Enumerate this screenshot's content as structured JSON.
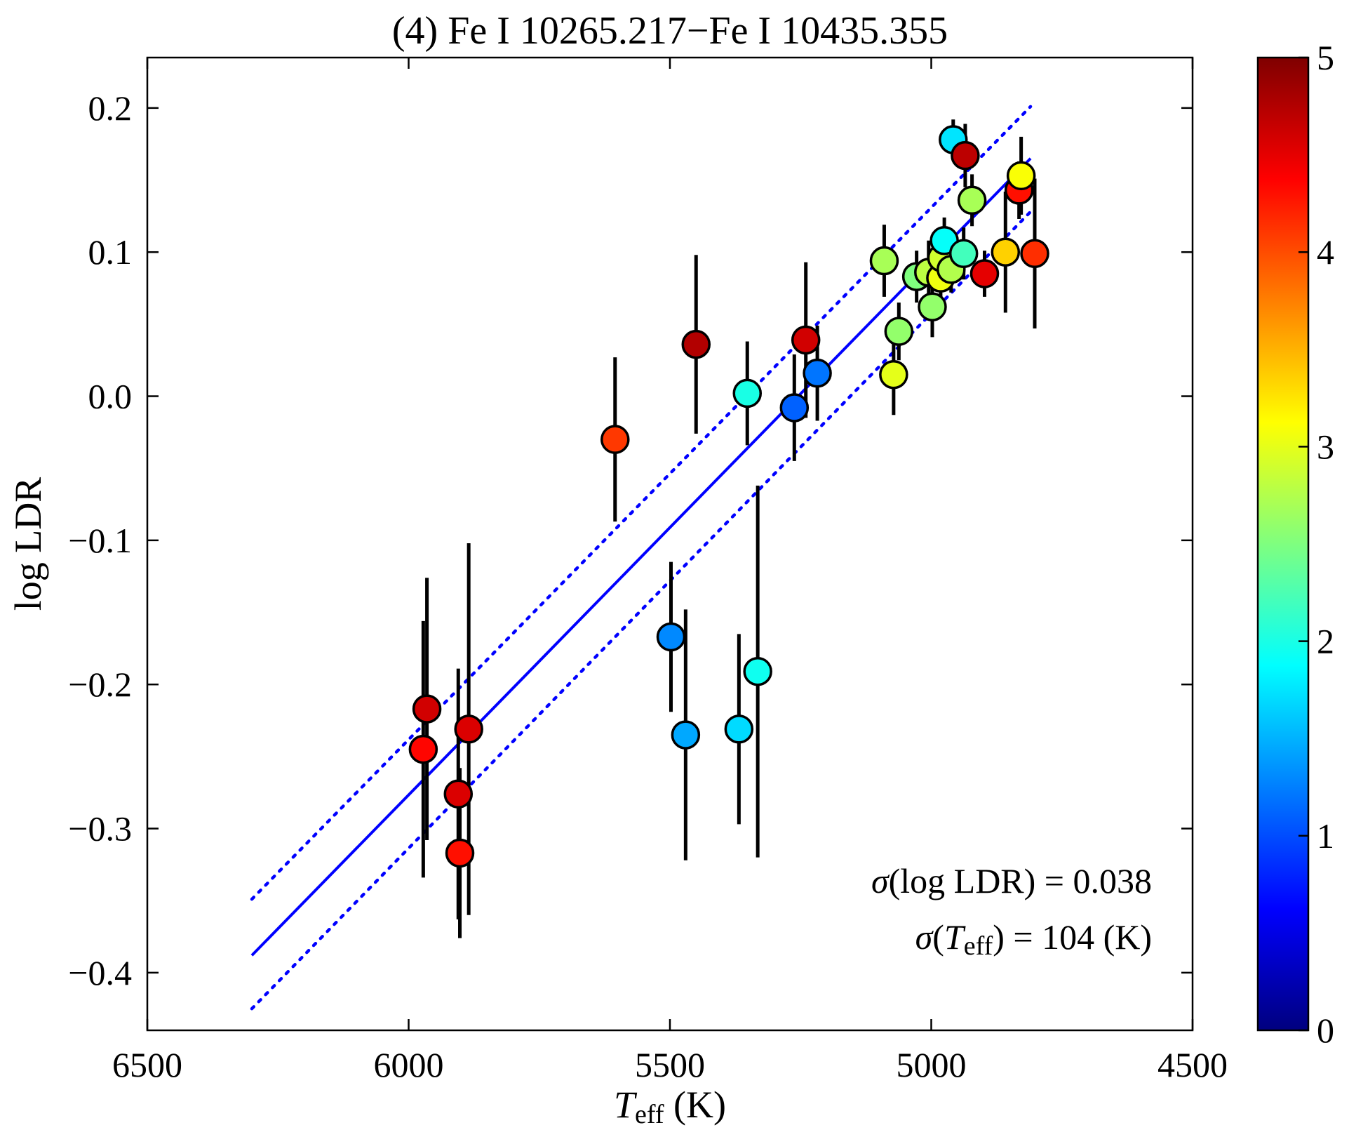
{
  "chart_data": {
    "type": "scatter",
    "title": "(4) Fe I 10265.217−Fe I 10435.355",
    "xlabel": {
      "symbol": "T",
      "sub": "eff",
      "unit": " (K)"
    },
    "ylabel": "log LDR",
    "xlim": [
      6500,
      4500
    ],
    "ylim": [
      -0.44,
      0.235
    ],
    "x_ticks": [
      6500,
      6000,
      5500,
      5000,
      4500
    ],
    "x_tick_labels": [
      "6500",
      "6000",
      "5500",
      "5000",
      "4500"
    ],
    "y_ticks": [
      0.2,
      0.1,
      0.0,
      -0.1,
      -0.2,
      -0.3,
      -0.4
    ],
    "y_tick_labels": [
      "0.2",
      "0.1",
      "0.0",
      "−0.1",
      "−0.2",
      "−0.3",
      "−0.4"
    ],
    "colorbar": {
      "range": [
        0,
        5
      ],
      "ticks": [
        0,
        1,
        2,
        3,
        4,
        5
      ],
      "tick_labels": [
        "0",
        "1",
        "2",
        "3",
        "4",
        "5"
      ],
      "colormap": "jet",
      "stops": [
        "#00007f",
        "#0000ff",
        "#007fff",
        "#00ffff",
        "#7fff7f",
        "#ffff00",
        "#ff7f00",
        "#ff0000",
        "#7f0000"
      ]
    },
    "fit_line": {
      "x": [
        6300,
        4810
      ],
      "y": [
        -0.388,
        0.165
      ],
      "style": "solid",
      "color": "#0000ff"
    },
    "fit_upper": {
      "x": [
        6300,
        4810
      ],
      "y": [
        -0.349,
        0.201
      ],
      "style": "dotted",
      "color": "#0000ff"
    },
    "fit_lower": {
      "x": [
        6300,
        4810
      ],
      "y": [
        -0.425,
        0.128
      ],
      "style": "dotted",
      "color": "#0000ff"
    },
    "points": [
      {
        "x": 5450,
        "y": 0.036,
        "err": 0.062,
        "c": 4.75
      },
      {
        "x": 5605,
        "y": -0.03,
        "err": 0.057,
        "c": 4.1
      },
      {
        "x": 5352,
        "y": 0.002,
        "err": 0.036,
        "c": 2.0
      },
      {
        "x": 5262,
        "y": -0.008,
        "err": 0.037,
        "c": 1.1
      },
      {
        "x": 5240,
        "y": 0.039,
        "err": 0.054,
        "c": 4.6
      },
      {
        "x": 5218,
        "y": 0.016,
        "err": 0.033,
        "c": 1.2
      },
      {
        "x": 5090,
        "y": 0.094,
        "err": 0.025,
        "c": 2.7
      },
      {
        "x": 5072,
        "y": 0.015,
        "err": 0.028,
        "c": 3.0
      },
      {
        "x": 5062,
        "y": 0.045,
        "err": 0.02,
        "c": 2.6
      },
      {
        "x": 5028,
        "y": 0.083,
        "err": 0.018,
        "c": 2.5
      },
      {
        "x": 5005,
        "y": 0.086,
        "err": 0.022,
        "c": 2.8
      },
      {
        "x": 4998,
        "y": 0.062,
        "err": 0.021,
        "c": 2.6
      },
      {
        "x": 4982,
        "y": 0.082,
        "err": 0.02,
        "c": 3.05
      },
      {
        "x": 4980,
        "y": 0.096,
        "err": 0.02,
        "c": 2.9
      },
      {
        "x": 4975,
        "y": 0.108,
        "err": 0.016,
        "c": 1.9
      },
      {
        "x": 4962,
        "y": 0.088,
        "err": 0.016,
        "c": 2.75
      },
      {
        "x": 4938,
        "y": 0.099,
        "err": 0.018,
        "c": 2.2
      },
      {
        "x": 4958,
        "y": 0.178,
        "err": 0.014,
        "c": 1.75
      },
      {
        "x": 4935,
        "y": 0.167,
        "err": 0.022,
        "c": 4.7
      },
      {
        "x": 4922,
        "y": 0.136,
        "err": 0.018,
        "c": 2.7
      },
      {
        "x": 4898,
        "y": 0.085,
        "err": 0.016,
        "c": 4.5
      },
      {
        "x": 4858,
        "y": 0.1,
        "err": 0.042,
        "c": 3.35
      },
      {
        "x": 4832,
        "y": 0.143,
        "err": 0.02,
        "c": 4.3
      },
      {
        "x": 4828,
        "y": 0.153,
        "err": 0.027,
        "c": 3.1
      },
      {
        "x": 4802,
        "y": 0.099,
        "err": 0.052,
        "c": 4.15
      },
      {
        "x": 5498,
        "y": -0.167,
        "err": 0.052,
        "c": 1.3
      },
      {
        "x": 5470,
        "y": -0.235,
        "err": 0.087,
        "c": 1.45
      },
      {
        "x": 5368,
        "y": -0.231,
        "err": 0.066,
        "c": 1.7
      },
      {
        "x": 5332,
        "y": -0.191,
        "err": 0.129,
        "c": 1.95
      },
      {
        "x": 5965,
        "y": -0.217,
        "err": 0.091,
        "c": 4.6
      },
      {
        "x": 5972,
        "y": -0.245,
        "err": 0.089,
        "c": 4.35
      },
      {
        "x": 5885,
        "y": -0.231,
        "err": 0.129,
        "c": 4.55
      },
      {
        "x": 5905,
        "y": -0.276,
        "err": 0.087,
        "c": 4.55
      },
      {
        "x": 5902,
        "y": -0.317,
        "err": 0.059,
        "c": 4.3
      }
    ],
    "annotations": [
      {
        "sigma": "σ",
        "text": "(log LDR) = 0.038"
      },
      {
        "sigma": "σ",
        "open": "(",
        "symbol": "T",
        "sub": "eff",
        "text": ") = 104 (K)"
      }
    ]
  }
}
